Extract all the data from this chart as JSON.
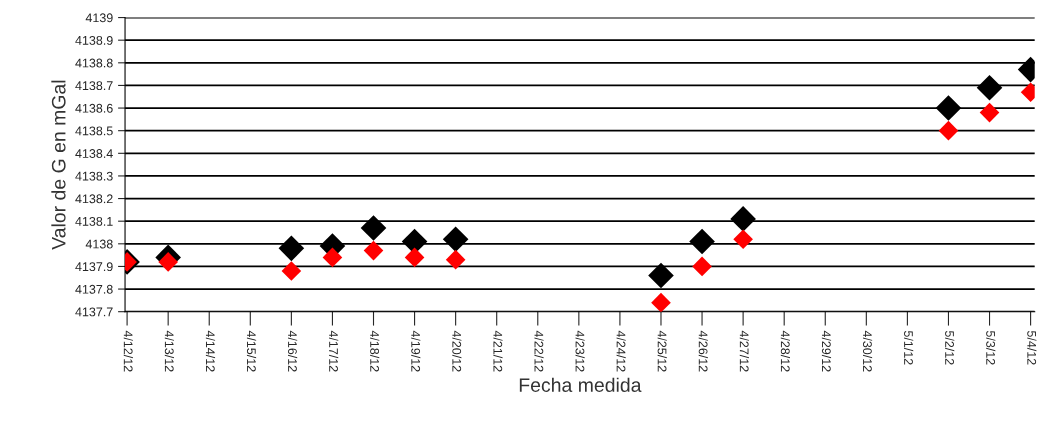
{
  "chart_data": {
    "type": "scatter",
    "xlabel": "Fecha medida",
    "ylabel": "Valor de G en mGal",
    "categories": [
      "4/12/12",
      "4/13/12",
      "4/14/12",
      "4/15/12",
      "4/16/12",
      "4/17/12",
      "4/18/12",
      "4/19/12",
      "4/20/12",
      "4/21/12",
      "4/22/12",
      "4/23/12",
      "4/24/12",
      "4/25/12",
      "4/26/12",
      "4/27/12",
      "4/28/12",
      "4/29/12",
      "4/30/12",
      "5/1/12",
      "5/2/12",
      "5/3/12",
      "5/4/12"
    ],
    "series": [
      {
        "color": "#000000",
        "values": [
          4137.92,
          4137.94,
          null,
          null,
          4137.98,
          4137.99,
          4138.07,
          4138.01,
          4138.02,
          null,
          null,
          null,
          null,
          4137.86,
          4138.01,
          4138.11,
          null,
          null,
          null,
          null,
          4138.6,
          4138.69,
          4138.77
        ]
      },
      {
        "color": "#ff0000",
        "values": [
          4137.92,
          4137.92,
          null,
          null,
          4137.88,
          4137.94,
          4137.97,
          4137.94,
          4137.93,
          null,
          null,
          null,
          null,
          4137.74,
          4137.9,
          4138.02,
          null,
          null,
          null,
          null,
          4138.5,
          4138.58,
          4138.67
        ]
      }
    ],
    "ylim": [
      4137.7,
      4139
    ],
    "yticks": [
      4137.7,
      4137.8,
      4137.9,
      4138,
      4138.1,
      4138.2,
      4138.3,
      4138.4,
      4138.5,
      4138.6,
      4138.7,
      4138.8,
      4138.9,
      4139
    ],
    "grid": "y",
    "marker": "diamond",
    "legend": false
  }
}
